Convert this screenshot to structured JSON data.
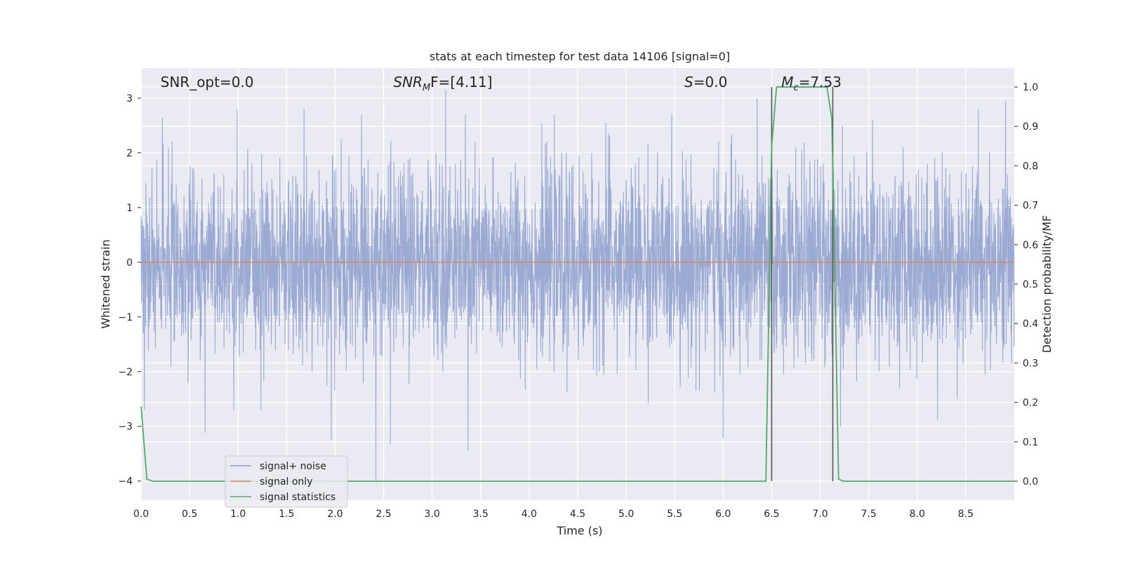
{
  "chart_data": {
    "type": "line",
    "title": "stats at each timestep for test data 14106 [signal=0]",
    "xlabel": "Time (s)",
    "ylabel": "Whitened strain",
    "ylabel_right": "Detection probability/MF",
    "xlim": [
      0.0,
      9.0
    ],
    "ylim": [
      -4.35,
      3.55
    ],
    "ylim_right": [
      -0.048,
      1.048
    ],
    "x_ticks": [
      0.0,
      0.5,
      1.0,
      1.5,
      2.0,
      2.5,
      3.0,
      3.5,
      4.0,
      4.5,
      5.0,
      5.5,
      6.0,
      6.5,
      7.0,
      7.5,
      8.0,
      8.5
    ],
    "x_tick_labels": [
      "0.0",
      "0.5",
      "1.0",
      "1.5",
      "2.0",
      "2.5",
      "3.0",
      "3.5",
      "4.0",
      "4.5",
      "5.0",
      "5.5",
      "6.0",
      "6.5",
      "7.0",
      "7.5",
      "8.0",
      "8.5"
    ],
    "y_ticks": [
      -4,
      -3,
      -2,
      -1,
      0,
      1,
      2,
      3
    ],
    "y_tick_labels": [
      "−4",
      "−3",
      "−2",
      "−1",
      "0",
      "1",
      "2",
      "3"
    ],
    "y_ticks_right": [
      0.0,
      0.1,
      0.2,
      0.3,
      0.4,
      0.5,
      0.6,
      0.7,
      0.8,
      0.9,
      1.0
    ],
    "y_tick_labels_right": [
      "0.0",
      "0.1",
      "0.2",
      "0.3",
      "0.4",
      "0.5",
      "0.6",
      "0.7",
      "0.8",
      "0.9",
      "1.0"
    ],
    "grid": true,
    "legend_position": "lower-left",
    "series": [
      {
        "name": "signal+ noise",
        "axis": "left",
        "color": "#8c9fcc",
        "noise_amplitude_typical": 1.3,
        "noise_extremes": [
          {
            "x": 0.22,
            "y": 2.65
          },
          {
            "x": 0.66,
            "y": -3.12
          },
          {
            "x": 0.99,
            "y": 2.8
          },
          {
            "x": 1.68,
            "y": 2.8
          },
          {
            "x": 1.96,
            "y": -3.25
          },
          {
            "x": 2.42,
            "y": -4.0
          },
          {
            "x": 2.57,
            "y": -3.32
          },
          {
            "x": 3.14,
            "y": 3.15
          },
          {
            "x": 3.37,
            "y": -3.45
          },
          {
            "x": 4.79,
            "y": 2.55
          },
          {
            "x": 6.0,
            "y": -3.22
          },
          {
            "x": 6.35,
            "y": 3.0
          },
          {
            "x": 7.23,
            "y": 2.5
          },
          {
            "x": 7.21,
            "y": -3.0
          },
          {
            "x": 7.54,
            "y": 2.6
          },
          {
            "x": 8.21,
            "y": -2.88
          },
          {
            "x": 8.63,
            "y": 2.8
          },
          {
            "x": 8.91,
            "y": 2.95
          }
        ]
      },
      {
        "name": "signal only",
        "axis": "left",
        "color": "#dd8452",
        "x": [
          0.0,
          9.0
        ],
        "y": [
          0.0,
          0.0
        ]
      },
      {
        "name": "signal statistics",
        "axis": "right",
        "color": "#55a868",
        "x": [
          0.0,
          0.06,
          0.12,
          6.44,
          6.5,
          6.55,
          7.07,
          7.12,
          7.19,
          7.24,
          9.0
        ],
        "y": [
          0.19,
          0.005,
          0.0,
          0.0,
          0.85,
          1.0,
          1.0,
          0.92,
          0.005,
          0.0,
          0.0
        ]
      }
    ],
    "vertical_lines": [
      6.5,
      7.13
    ],
    "annotations": [
      {
        "name": "snr-opt",
        "text": "SNR_opt=0.0",
        "x": 0.2
      },
      {
        "name": "snr-mf",
        "text_main": "SNR",
        "text_sub": "M",
        "text_rest": "F=[4.11]",
        "x": 2.6
      },
      {
        "name": "s-stat",
        "text_main": "S",
        "text_rest": "=0.0",
        "x": 5.6
      },
      {
        "name": "chirp-mass",
        "text_main": "M",
        "text_sub": "c",
        "text_rest": "=7.53",
        "x": 6.6
      }
    ]
  }
}
